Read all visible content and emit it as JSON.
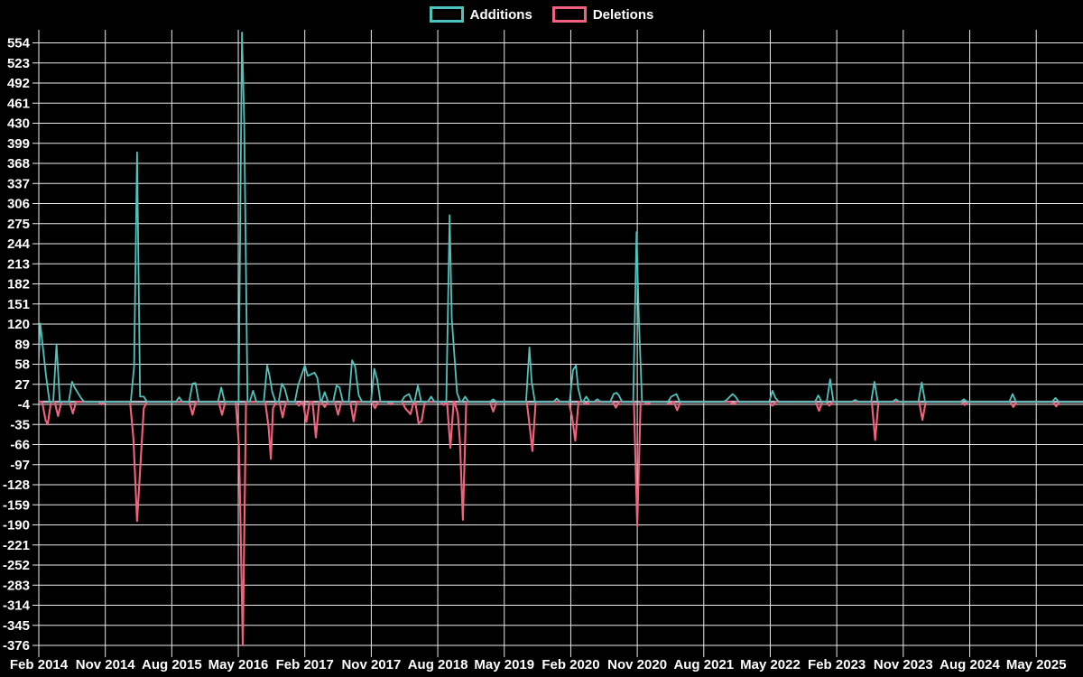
{
  "chart_data": {
    "type": "line",
    "title": "",
    "description": "Weekly code additions and deletions spike chart on black background",
    "legend_position": "top-center",
    "grid": true,
    "background": "#000000",
    "colors": {
      "additions": "#4dc4bd",
      "deletions": "#f2627f",
      "zero_line": "#b4c0c9",
      "grid": "#ffffff",
      "text": "#ffffff"
    },
    "x_axis": {
      "unit": "months since Feb 2014",
      "tick_interval_months": 9,
      "tick_labels": [
        "Feb 2014",
        "Nov 2014",
        "Aug 2015",
        "May 2016",
        "Feb 2017",
        "Nov 2017",
        "Aug 2018",
        "May 2019",
        "Feb 2020",
        "Nov 2020",
        "Aug 2021",
        "May 2022",
        "Feb 2023",
        "Nov 2023",
        "Aug 2024",
        "May 2025"
      ],
      "range_months": [
        0,
        141.6
      ]
    },
    "y_axis": {
      "max": 554,
      "min": -376,
      "step": 31,
      "ticks": [
        554,
        523,
        492,
        461,
        430,
        399,
        368,
        337,
        306,
        275,
        244,
        213,
        182,
        151,
        120,
        89,
        58,
        27,
        -4,
        -35,
        -66,
        -97,
        -128,
        -159,
        -190,
        -221,
        -252,
        -283,
        -314,
        -345,
        -376
      ]
    },
    "baseline_value": 0,
    "series": [
      {
        "name": "Additions",
        "color": "#4dc4bd",
        "points": [
          [
            0.2,
            121
          ],
          [
            1.0,
            38
          ],
          [
            2.4,
            89
          ],
          [
            4.5,
            31
          ],
          [
            4.9,
            21
          ],
          [
            5.7,
            6
          ],
          [
            12.9,
            55
          ],
          [
            13.3,
            385
          ],
          [
            13.7,
            8
          ],
          [
            14.2,
            8
          ],
          [
            19.0,
            7
          ],
          [
            20.8,
            28
          ],
          [
            21.2,
            29
          ],
          [
            24.7,
            22
          ],
          [
            27.5,
            570
          ],
          [
            27.8,
            430
          ],
          [
            29.0,
            17
          ],
          [
            30.9,
            56
          ],
          [
            31.2,
            42
          ],
          [
            31.6,
            15
          ],
          [
            32.9,
            28
          ],
          [
            33.3,
            20
          ],
          [
            35.1,
            26
          ],
          [
            36.0,
            56
          ],
          [
            36.4,
            40
          ],
          [
            37.3,
            45
          ],
          [
            37.7,
            37
          ],
          [
            38.7,
            15
          ],
          [
            40.3,
            25
          ],
          [
            40.7,
            22
          ],
          [
            42.4,
            64
          ],
          [
            42.8,
            55
          ],
          [
            43.3,
            10
          ],
          [
            45.4,
            51
          ],
          [
            45.8,
            35
          ],
          [
            49.5,
            8
          ],
          [
            50.1,
            12
          ],
          [
            51.3,
            25
          ],
          [
            53.1,
            8
          ],
          [
            55.6,
            288
          ],
          [
            55.9,
            128
          ],
          [
            56.6,
            14
          ],
          [
            57.7,
            8
          ],
          [
            61.5,
            4
          ],
          [
            66.4,
            84
          ],
          [
            66.7,
            31
          ],
          [
            70.1,
            5
          ],
          [
            72.3,
            49
          ],
          [
            72.7,
            56
          ],
          [
            73.0,
            21
          ],
          [
            74.1,
            8
          ],
          [
            75.6,
            4
          ],
          [
            77.8,
            12
          ],
          [
            78.2,
            14
          ],
          [
            78.5,
            10
          ],
          [
            80.9,
            262
          ],
          [
            81.2,
            130
          ],
          [
            85.6,
            8
          ],
          [
            86.3,
            12
          ],
          [
            93.1,
            3
          ],
          [
            93.9,
            12
          ],
          [
            94.3,
            8
          ],
          [
            99.3,
            17
          ],
          [
            99.7,
            6
          ],
          [
            105.5,
            10
          ],
          [
            107.1,
            35
          ],
          [
            110.5,
            3
          ],
          [
            113.1,
            31
          ],
          [
            116.0,
            4
          ],
          [
            119.5,
            30
          ],
          [
            125.2,
            4
          ],
          [
            131.8,
            12
          ],
          [
            137.6,
            6
          ]
        ]
      },
      {
        "name": "Deletions",
        "color": "#f2627f",
        "points": [
          [
            0.9,
            -28
          ],
          [
            1.2,
            -35
          ],
          [
            2.6,
            -22
          ],
          [
            4.6,
            -18
          ],
          [
            8.5,
            -4
          ],
          [
            12.8,
            -56
          ],
          [
            13.3,
            -184
          ],
          [
            14.2,
            -10
          ],
          [
            20.8,
            -20
          ],
          [
            24.8,
            -20
          ],
          [
            27.1,
            -70
          ],
          [
            27.6,
            -376
          ],
          [
            31.1,
            -39
          ],
          [
            31.4,
            -88
          ],
          [
            31.7,
            -10
          ],
          [
            33.0,
            -24
          ],
          [
            35.2,
            -6
          ],
          [
            36.2,
            -31
          ],
          [
            37.5,
            -55
          ],
          [
            38.7,
            -8
          ],
          [
            40.5,
            -20
          ],
          [
            42.6,
            -30
          ],
          [
            45.5,
            -10
          ],
          [
            47.6,
            -4
          ],
          [
            49.6,
            -10
          ],
          [
            50.3,
            -19
          ],
          [
            51.4,
            -33
          ],
          [
            51.8,
            -30
          ],
          [
            54.8,
            -5
          ],
          [
            55.7,
            -71
          ],
          [
            56.7,
            -18
          ],
          [
            57.0,
            -61
          ],
          [
            57.4,
            -182
          ],
          [
            61.5,
            -15
          ],
          [
            66.5,
            -44
          ],
          [
            66.8,
            -76
          ],
          [
            72.2,
            -25
          ],
          [
            72.6,
            -60
          ],
          [
            74.1,
            -4
          ],
          [
            78.1,
            -9
          ],
          [
            81.0,
            -192
          ],
          [
            82.4,
            -4
          ],
          [
            85.4,
            -4
          ],
          [
            86.4,
            -13
          ],
          [
            94.0,
            -4
          ],
          [
            99.3,
            -6
          ],
          [
            105.6,
            -14
          ],
          [
            107.0,
            -6
          ],
          [
            113.2,
            -59
          ],
          [
            119.6,
            -28
          ],
          [
            125.3,
            -5
          ],
          [
            131.9,
            -8
          ],
          [
            137.7,
            -7
          ]
        ]
      }
    ]
  }
}
